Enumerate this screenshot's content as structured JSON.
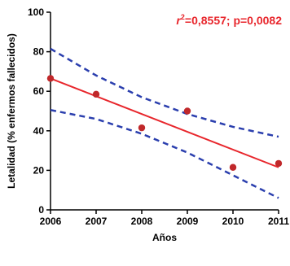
{
  "chart_data": {
    "type": "scatter",
    "xlabel": "Años",
    "ylabel": "Letalidad (% enfermos fallecidos)",
    "xlim": [
      2006,
      2011
    ],
    "ylim": [
      0,
      100
    ],
    "x_ticks": [
      2006,
      2007,
      2008,
      2009,
      2010,
      2011
    ],
    "y_ticks": [
      0,
      20,
      40,
      60,
      80,
      100
    ],
    "grid": false,
    "annotation": {
      "r_symbol": "r",
      "r_exponent": "2",
      "text": "=0,8557; p=0,0082",
      "color": "#e8262c"
    },
    "points": {
      "color": "#c0282a",
      "x": [
        2006,
        2007,
        2008,
        2009,
        2010,
        2011
      ],
      "y": [
        66.5,
        58.5,
        41.5,
        50,
        21.5,
        23.5
      ]
    },
    "regression_line": {
      "color": "#e8262c",
      "x": [
        2006,
        2011
      ],
      "y": [
        66.5,
        21.5
      ]
    },
    "confidence_upper": {
      "color": "#2b3fae",
      "x": [
        2006,
        2007,
        2008,
        2009,
        2010,
        2011
      ],
      "y": [
        81.5,
        68,
        57,
        48.5,
        42,
        37
      ]
    },
    "confidence_lower": {
      "color": "#2b3fae",
      "x": [
        2006,
        2007,
        2008,
        2009,
        2010,
        2011
      ],
      "y": [
        50.5,
        46,
        38.5,
        29,
        17.5,
        6
      ]
    }
  }
}
